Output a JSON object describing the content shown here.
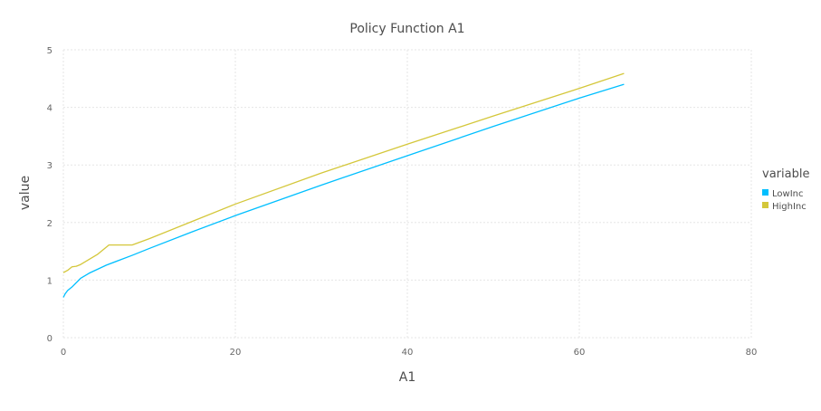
{
  "chart_data": {
    "type": "line",
    "title": "Policy Function A1",
    "xlabel": "A1",
    "ylabel": "value",
    "xlim": [
      0,
      80
    ],
    "ylim": [
      0,
      5
    ],
    "xticks": [
      "0",
      "20",
      "40",
      "60",
      "80"
    ],
    "yticks": [
      "0",
      "1",
      "2",
      "3",
      "4",
      "5"
    ],
    "grid": true,
    "legend": {
      "title": "variable",
      "placement": "right"
    },
    "series": [
      {
        "name": "LowInc",
        "color": "#00bfff",
        "x": [
          0.0,
          0.2,
          0.5,
          1.0,
          2.0,
          3.0,
          5.0,
          8.0,
          10.0,
          15.0,
          20.0,
          30.0,
          40.0,
          50.0,
          60.0,
          65.2
        ],
        "y": [
          0.7,
          0.76,
          0.82,
          0.88,
          1.03,
          1.12,
          1.26,
          1.43,
          1.55,
          1.84,
          2.12,
          2.65,
          3.16,
          3.67,
          4.16,
          4.4
        ]
      },
      {
        "name": "HighInc",
        "color": "#d4c73a",
        "x": [
          0.0,
          0.5,
          1.0,
          1.5,
          2.0,
          4.0,
          5.3,
          8.0,
          10.0,
          15.0,
          20.0,
          30.0,
          40.0,
          50.0,
          60.0,
          65.2
        ],
        "y": [
          1.13,
          1.17,
          1.23,
          1.24,
          1.27,
          1.45,
          1.61,
          1.61,
          1.72,
          2.02,
          2.32,
          2.86,
          3.36,
          3.85,
          4.33,
          4.59
        ]
      }
    ]
  }
}
